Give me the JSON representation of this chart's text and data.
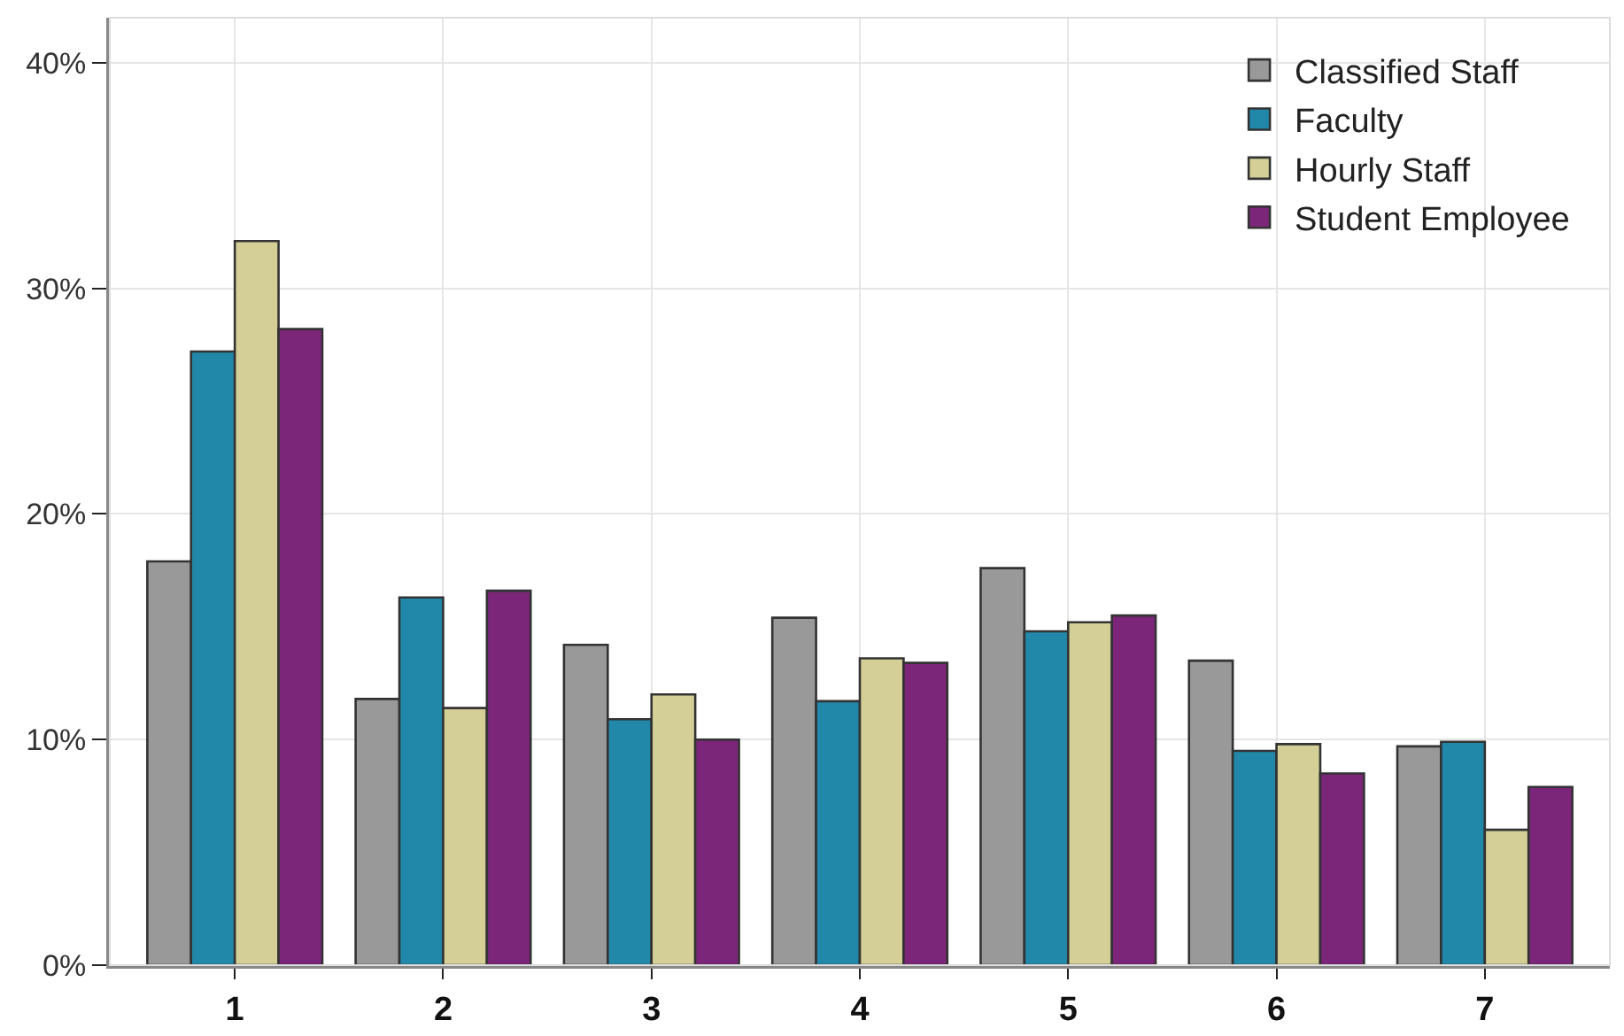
{
  "chart_data": {
    "type": "bar",
    "categories": [
      "1",
      "2",
      "3",
      "4",
      "5",
      "6",
      "7"
    ],
    "series": [
      {
        "name": "Classified Staff",
        "color": "#999999",
        "values": [
          17.9,
          11.8,
          14.2,
          15.4,
          17.6,
          13.5,
          9.7
        ]
      },
      {
        "name": "Faculty",
        "color": "#2288aa",
        "values": [
          27.2,
          16.3,
          10.9,
          11.7,
          14.8,
          9.5,
          9.9
        ]
      },
      {
        "name": "Hourly Staff",
        "color": "#d4cf96",
        "values": [
          32.1,
          11.4,
          12.0,
          13.6,
          15.2,
          9.8,
          6.0
        ]
      },
      {
        "name": "Student Employee",
        "color": "#7b2679",
        "values": [
          28.2,
          16.6,
          10.0,
          13.4,
          15.5,
          8.5,
          7.9
        ]
      }
    ],
    "ylim": [
      0,
      42
    ],
    "yticks": [
      {
        "value": 0,
        "label": "0%"
      },
      {
        "value": 10,
        "label": "10%"
      },
      {
        "value": 20,
        "label": "20%"
      },
      {
        "value": 30,
        "label": "30%"
      },
      {
        "value": 40,
        "label": "40%"
      }
    ],
    "grid": true,
    "legend": "top right"
  }
}
